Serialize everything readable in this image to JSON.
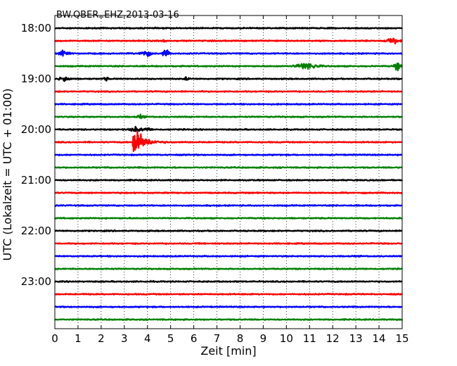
{
  "chart_data": {
    "type": "line",
    "title": "BW.OBER..EHZ 2013-03-16",
    "xlabel": "Zeit  [min]",
    "ylabel": "UTC (Lokalzeit = UTC + 01:00)",
    "xlim": [
      0,
      15
    ],
    "x_ticks": [
      0,
      1,
      2,
      3,
      4,
      5,
      6,
      7,
      8,
      9,
      10,
      11,
      12,
      13,
      14,
      15
    ],
    "y_tick_labels": [
      "18:00",
      "19:00",
      "20:00",
      "21:00",
      "22:00",
      "23:00"
    ],
    "grid": true,
    "trace_colors": [
      "#000000",
      "#ff0000",
      "#0000ff",
      "#008000"
    ],
    "series": [
      {
        "start": "18:00",
        "color": "#000000",
        "bursts": []
      },
      {
        "start": "18:15",
        "color": "#ff0000",
        "bursts": [
          {
            "t": 14.6,
            "amp": 5,
            "dur": 0.5
          },
          {
            "t": 4.7,
            "amp": 2,
            "dur": 0.2
          }
        ]
      },
      {
        "start": "18:30",
        "color": "#0000ff",
        "bursts": [
          {
            "t": 0.4,
            "amp": 6,
            "dur": 0.4
          },
          {
            "t": 3.9,
            "amp": 7,
            "dur": 0.4
          },
          {
            "t": 4.8,
            "amp": 6,
            "dur": 0.3
          }
        ]
      },
      {
        "start": "18:45",
        "color": "#008000",
        "bursts": [
          {
            "t": 10.9,
            "amp": 6,
            "dur": 0.9
          },
          {
            "t": 14.8,
            "amp": 6,
            "dur": 0.3
          }
        ]
      },
      {
        "start": "19:00",
        "color": "#000000",
        "bursts": [
          {
            "t": 0.4,
            "amp": 5,
            "dur": 0.4
          },
          {
            "t": 2.2,
            "amp": 3,
            "dur": 0.2
          },
          {
            "t": 5.7,
            "amp": 3,
            "dur": 0.2
          }
        ]
      },
      {
        "start": "19:15",
        "color": "#ff0000",
        "bursts": []
      },
      {
        "start": "19:30",
        "color": "#0000ff",
        "bursts": []
      },
      {
        "start": "19:45",
        "color": "#008000",
        "bursts": [
          {
            "t": 3.7,
            "amp": 3,
            "dur": 0.3
          }
        ]
      },
      {
        "start": "20:00",
        "color": "#000000",
        "bursts": [
          {
            "t": 3.5,
            "amp": 4,
            "dur": 0.5
          },
          {
            "t": 4.0,
            "amp": 3,
            "dur": 0.3
          }
        ]
      },
      {
        "start": "20:15",
        "color": "#ff0000",
        "bursts": [
          {
            "t": 3.35,
            "amp": 40,
            "dur": 2.0,
            "quake": true
          }
        ]
      },
      {
        "start": "20:30",
        "color": "#0000ff",
        "bursts": []
      },
      {
        "start": "20:45",
        "color": "#008000",
        "bursts": []
      },
      {
        "start": "21:00",
        "color": "#000000",
        "bursts": []
      },
      {
        "start": "21:15",
        "color": "#ff0000",
        "bursts": []
      },
      {
        "start": "21:30",
        "color": "#0000ff",
        "bursts": []
      },
      {
        "start": "21:45",
        "color": "#008000",
        "bursts": []
      },
      {
        "start": "22:00",
        "color": "#000000",
        "bursts": []
      },
      {
        "start": "22:15",
        "color": "#ff0000",
        "bursts": []
      },
      {
        "start": "22:30",
        "color": "#0000ff",
        "bursts": []
      },
      {
        "start": "22:45",
        "color": "#008000",
        "bursts": []
      },
      {
        "start": "23:00",
        "color": "#000000",
        "bursts": []
      },
      {
        "start": "23:15",
        "color": "#ff0000",
        "bursts": []
      },
      {
        "start": "23:30",
        "color": "#0000ff",
        "bursts": []
      },
      {
        "start": "23:45",
        "color": "#008000",
        "bursts": []
      }
    ]
  }
}
